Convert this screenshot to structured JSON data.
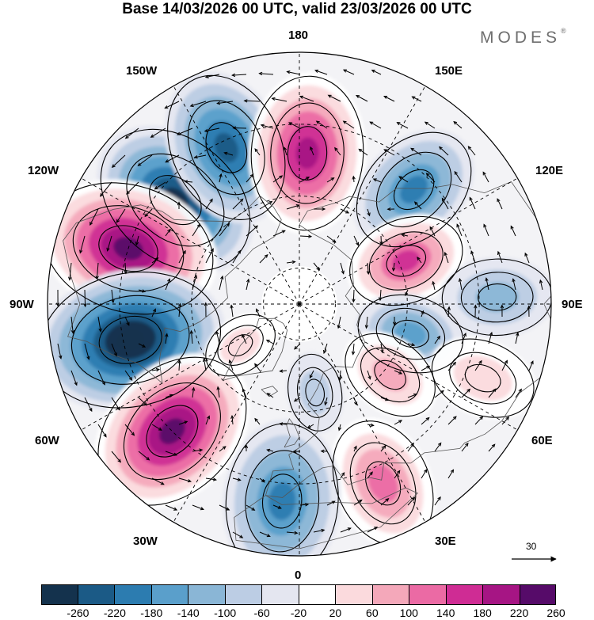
{
  "title": "Base 14/03/2026 00 UTC, valid 23/03/2026 00 UTC",
  "logo": {
    "text": "MODES",
    "mark": "®"
  },
  "longitude_labels": {
    "top": "180",
    "bottom": "0",
    "left": "90W",
    "right": "90E",
    "upper_left": "150W",
    "upper_right": "150E",
    "mid_upper_left": "120W",
    "mid_upper_right": "120E",
    "mid_lower_left": "60W",
    "mid_lower_right": "60E",
    "lower_left": "30W",
    "lower_right": "30E"
  },
  "reference_vector": {
    "label": "30"
  },
  "colorbar": {
    "ticks": [
      "-260",
      "-220",
      "-180",
      "-140",
      "-100",
      "-60",
      "-20",
      "20",
      "60",
      "100",
      "140",
      "180",
      "220",
      "260"
    ],
    "colors": [
      "#14324d",
      "#1b5a86",
      "#2c7cb0",
      "#5a9fcb",
      "#8ab6d6",
      "#bccde4",
      "#e4e6f0",
      "#ffffff",
      "#fbdadd",
      "#f4a8ba",
      "#eb6aa4",
      "#cf2c94",
      "#a61584",
      "#560b69"
    ]
  },
  "anomaly_centers": [
    {
      "id": "north-america-low",
      "sign": "neg",
      "value": -250,
      "lon": -130,
      "lat": 45
    },
    {
      "id": "pacific-high",
      "sign": "pos",
      "value": 250,
      "lon": -108,
      "lat": 40
    },
    {
      "id": "aleutian-low",
      "sign": "neg",
      "value": -280,
      "lon": -78,
      "lat": 42
    },
    {
      "id": "atlantic-high",
      "sign": "pos",
      "value": 240,
      "lon": -45,
      "lat": 40
    },
    {
      "id": "east-pacific-low",
      "sign": "neg",
      "value": -200,
      "lon": -155,
      "lat": 42
    },
    {
      "id": "bering-high",
      "sign": "pos",
      "value": 230,
      "lon": 177,
      "lat": 48
    },
    {
      "id": "kamchatka-low",
      "sign": "neg",
      "value": -160,
      "lon": 135,
      "lat": 45
    },
    {
      "id": "siberia-high",
      "sign": "pos",
      "value": 160,
      "lon": 112,
      "lat": 58
    },
    {
      "id": "central-asia-low",
      "sign": "neg",
      "value": -80,
      "lon": 92,
      "lat": 35
    },
    {
      "id": "siberia-low",
      "sign": "neg",
      "value": -130,
      "lon": 75,
      "lat": 58
    },
    {
      "id": "ural-high",
      "sign": "pos",
      "value": 110,
      "lon": 52,
      "lat": 58
    },
    {
      "id": "east-europe-high",
      "sign": "pos",
      "value": 70,
      "lon": 68,
      "lat": 35
    },
    {
      "id": "west-europe-high",
      "sign": "pos",
      "value": 130,
      "lon": 25,
      "lat": 35
    },
    {
      "id": "north-atlantic-low",
      "sign": "neg",
      "value": -190,
      "lon": -5,
      "lat": 35
    },
    {
      "id": "norwegian-low",
      "sign": "neg",
      "value": -60,
      "lon": 10,
      "lat": 65
    },
    {
      "id": "greenland-high",
      "sign": "pos",
      "value": 70,
      "lon": -55,
      "lat": 70
    }
  ]
}
